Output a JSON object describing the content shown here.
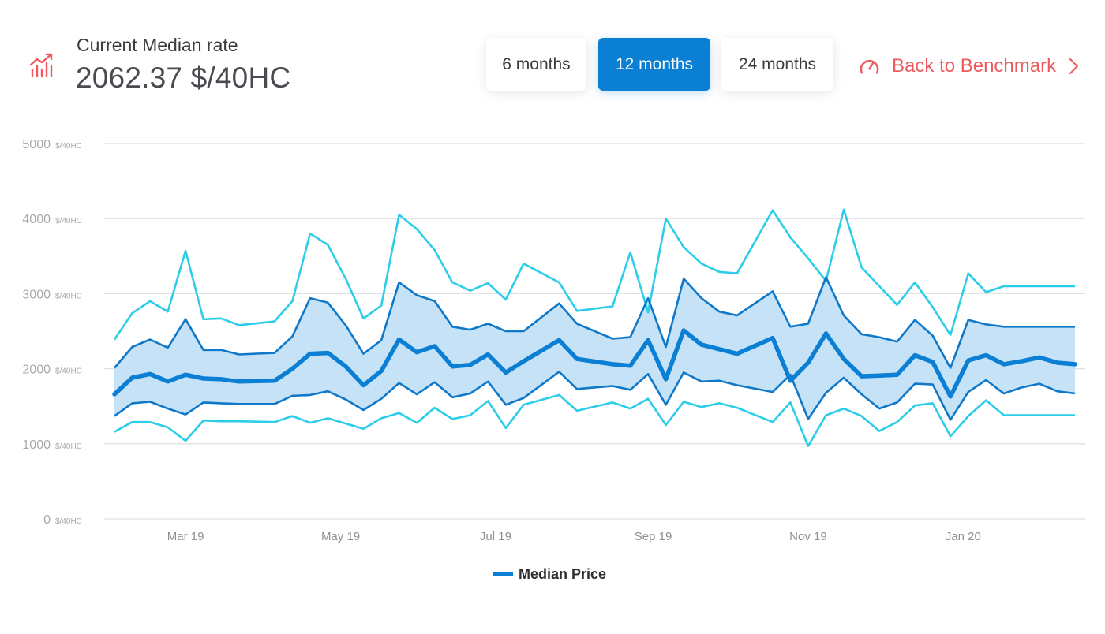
{
  "header": {
    "title": "Current Median rate",
    "value": "2062.37 $/40HC",
    "icon": "chart-up-icon"
  },
  "periods": {
    "options": [
      "6 months",
      "12 months",
      "24 months"
    ],
    "selected": "12 months"
  },
  "back_link": {
    "label": "Back to Benchmark",
    "icon": "gauge-icon"
  },
  "colors": {
    "accent": "#0a7fd3",
    "outer_line": "#2bcde9",
    "inner_line": "#0f78c9",
    "band_fill": "#c3e0f7",
    "link": "#ee5a5e",
    "grid": "#e1e1e4"
  },
  "chart_data": {
    "type": "line",
    "y_unit": "$/40HC",
    "ylim": [
      0,
      5000
    ],
    "y_ticks": [
      0,
      1000,
      2000,
      3000,
      4000,
      5000
    ],
    "x_range": [
      "2019-02-01",
      "2020-02-14"
    ],
    "x_tick_labels": [
      {
        "label": "Mar 19",
        "date": "2019-03-01"
      },
      {
        "label": "May 19",
        "date": "2019-05-01"
      },
      {
        "label": "Jul 19",
        "date": "2019-07-01"
      },
      {
        "label": "Sep 19",
        "date": "2019-09-01"
      },
      {
        "label": "Nov 19",
        "date": "2019-11-01"
      },
      {
        "label": "Jan 20",
        "date": "2020-01-01"
      }
    ],
    "grid": true,
    "legend": {
      "position": "bottom-center",
      "entries": [
        "Median Price"
      ]
    },
    "x": [
      "2019-02-01",
      "2019-02-08",
      "2019-02-15",
      "2019-02-22",
      "2019-03-01",
      "2019-03-08",
      "2019-03-15",
      "2019-03-22",
      "2019-04-05",
      "2019-04-12",
      "2019-04-19",
      "2019-04-26",
      "2019-05-03",
      "2019-05-10",
      "2019-05-17",
      "2019-05-24",
      "2019-05-31",
      "2019-06-07",
      "2019-06-14",
      "2019-06-21",
      "2019-06-28",
      "2019-07-05",
      "2019-07-12",
      "2019-07-26",
      "2019-08-02",
      "2019-08-16",
      "2019-08-23",
      "2019-08-30",
      "2019-09-06",
      "2019-09-13",
      "2019-09-20",
      "2019-09-27",
      "2019-10-04",
      "2019-10-18",
      "2019-10-25",
      "2019-11-01",
      "2019-11-08",
      "2019-11-15",
      "2019-11-22",
      "2019-11-29",
      "2019-12-06",
      "2019-12-13",
      "2019-12-20",
      "2019-12-27",
      "2020-01-03",
      "2020-01-10",
      "2020-01-17",
      "2020-01-24",
      "2020-01-31",
      "2020-02-07",
      "2020-02-14"
    ],
    "series": [
      {
        "name": "Median Price",
        "values": [
          1660,
          1880,
          1930,
          1830,
          1920,
          1870,
          1860,
          1830,
          1840,
          2000,
          2200,
          2210,
          2030,
          1780,
          1970,
          2390,
          2220,
          2300,
          2030,
          2050,
          2190,
          1950,
          2100,
          2380,
          2130,
          2060,
          2040,
          2380,
          1860,
          2510,
          2320,
          2260,
          2200,
          2410,
          1840,
          2080,
          2470,
          2130,
          1900,
          1910,
          1920,
          2180,
          2090,
          1630,
          2110,
          2180,
          2060,
          2100,
          2150,
          2080,
          2060
        ]
      },
      {
        "role": "upper-band",
        "values": [
          2010,
          2290,
          2390,
          2280,
          2660,
          2250,
          2250,
          2190,
          2210,
          2430,
          2940,
          2880,
          2580,
          2200,
          2380,
          3150,
          2980,
          2900,
          2560,
          2520,
          2600,
          2500,
          2500,
          2870,
          2600,
          2400,
          2420,
          2940,
          2290,
          3200,
          2940,
          2760,
          2710,
          3030,
          2560,
          2600,
          3220,
          2710,
          2460,
          2420,
          2360,
          2650,
          2440,
          2010,
          2650,
          2590,
          2560,
          2560,
          2560,
          2560,
          2560
        ]
      },
      {
        "role": "lower-band",
        "values": [
          1370,
          1540,
          1560,
          1470,
          1390,
          1550,
          1540,
          1530,
          1530,
          1640,
          1650,
          1700,
          1590,
          1450,
          1600,
          1810,
          1660,
          1820,
          1620,
          1670,
          1830,
          1520,
          1610,
          1960,
          1730,
          1770,
          1720,
          1930,
          1520,
          1950,
          1830,
          1840,
          1780,
          1690,
          1920,
          1330,
          1680,
          1880,
          1660,
          1470,
          1550,
          1800,
          1790,
          1320,
          1690,
          1850,
          1670,
          1750,
          1800,
          1700,
          1670
        ]
      },
      {
        "role": "upper-outer",
        "values": [
          2390,
          2740,
          2900,
          2760,
          3570,
          2660,
          2670,
          2580,
          2630,
          2900,
          3800,
          3650,
          3200,
          2670,
          2840,
          4050,
          3860,
          3580,
          3150,
          3040,
          3140,
          2920,
          3400,
          3150,
          2770,
          2830,
          3550,
          2750,
          4000,
          3620,
          3400,
          3290,
          3270,
          4110,
          3750,
          3470,
          3170,
          4120,
          3350,
          3100,
          2850,
          3150,
          2820,
          2450,
          3270,
          3020,
          3100,
          3100,
          3100,
          3100,
          3100
        ]
      },
      {
        "role": "lower-outer",
        "values": [
          1160,
          1290,
          1290,
          1220,
          1040,
          1310,
          1300,
          1300,
          1290,
          1370,
          1280,
          1340,
          1270,
          1200,
          1340,
          1410,
          1280,
          1480,
          1330,
          1380,
          1570,
          1210,
          1520,
          1650,
          1440,
          1550,
          1470,
          1600,
          1250,
          1560,
          1490,
          1540,
          1480,
          1290,
          1550,
          970,
          1380,
          1470,
          1370,
          1170,
          1290,
          1510,
          1540,
          1100,
          1370,
          1580,
          1380,
          1380,
          1380,
          1380,
          1380
        ]
      }
    ]
  }
}
